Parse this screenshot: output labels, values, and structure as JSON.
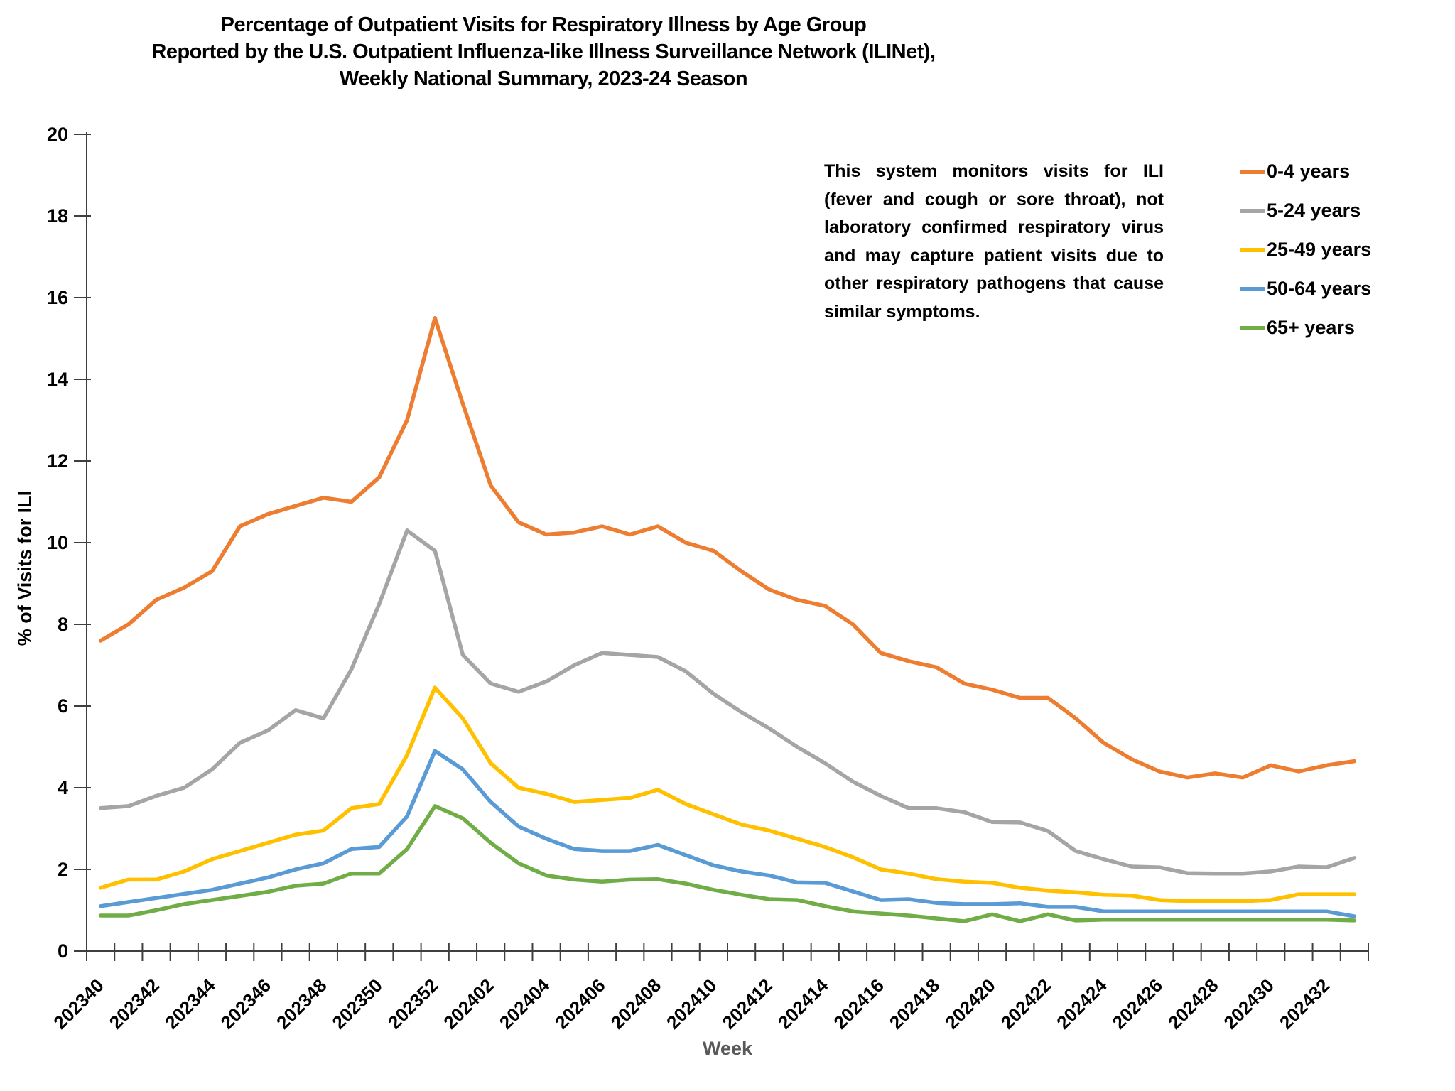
{
  "title": {
    "line1": "Percentage of Outpatient Visits for Respiratory Illness by Age Group",
    "line2": "Reported by the U.S. Outpatient Influenza-like Illness Surveillance Network (ILINet),",
    "line3": "Weekly National Summary, 2023-24 Season"
  },
  "annotation": {
    "text": "This system monitors visits for ILI (fever and cough or sore throat), not laboratory confirmed respiratory virus and may capture patient visits due to other respiratory pathogens that cause similar symptoms."
  },
  "chart_data": {
    "type": "line",
    "title": "Percentage of Outpatient Visits for Respiratory Illness by Age Group, ILINet, Weekly National Summary, 2023-24 Season",
    "xlabel": "Week",
    "ylabel": "% of Visits for ILI",
    "ylim": [
      0,
      20
    ],
    "ytick_step": 2,
    "grid": false,
    "legend_position": "right",
    "x_label_interval": 2,
    "x": [
      "202340",
      "202341",
      "202342",
      "202343",
      "202344",
      "202345",
      "202346",
      "202347",
      "202348",
      "202349",
      "202350",
      "202351",
      "202352",
      "202401",
      "202402",
      "202403",
      "202404",
      "202405",
      "202406",
      "202407",
      "202408",
      "202409",
      "202410",
      "202411",
      "202412",
      "202413",
      "202414",
      "202415",
      "202416",
      "202417",
      "202418",
      "202419",
      "202420",
      "202421",
      "202422",
      "202423",
      "202424",
      "202425",
      "202426",
      "202427",
      "202428",
      "202429",
      "202430",
      "202431",
      "202432",
      "202433"
    ],
    "series": [
      {
        "name": "0-4 years",
        "color": "#ED7D31",
        "values": [
          7.6,
          8.0,
          8.6,
          8.9,
          9.3,
          10.4,
          10.7,
          10.9,
          11.1,
          11.0,
          11.6,
          13.0,
          15.5,
          13.4,
          11.4,
          10.5,
          10.2,
          10.25,
          10.4,
          10.2,
          10.4,
          10.0,
          9.8,
          9.3,
          8.85,
          8.6,
          8.45,
          8.0,
          7.3,
          7.1,
          6.95,
          6.55,
          6.4,
          6.2,
          6.2,
          5.7,
          5.1,
          4.7,
          4.4,
          4.25,
          4.35,
          4.25,
          4.55,
          4.4,
          4.55,
          4.65
        ]
      },
      {
        "name": "5-24 years",
        "color": "#A5A5A5",
        "values": [
          3.5,
          3.55,
          3.8,
          4.0,
          4.45,
          5.1,
          5.4,
          5.9,
          5.7,
          6.9,
          8.5,
          10.3,
          9.8,
          7.25,
          6.55,
          6.35,
          6.6,
          7.0,
          7.3,
          7.25,
          7.2,
          6.85,
          6.3,
          5.85,
          5.45,
          5.0,
          4.6,
          4.15,
          3.8,
          3.5,
          3.5,
          3.4,
          3.16,
          3.15,
          2.94,
          2.45,
          2.25,
          2.07,
          2.05,
          1.91,
          1.9,
          1.9,
          1.95,
          2.07,
          2.05,
          2.28
        ]
      },
      {
        "name": "25-49 years",
        "color": "#FFC000",
        "values": [
          1.55,
          1.75,
          1.75,
          1.95,
          2.25,
          2.45,
          2.65,
          2.85,
          2.95,
          3.5,
          3.6,
          4.8,
          6.45,
          5.7,
          4.6,
          4.0,
          3.85,
          3.65,
          3.7,
          3.75,
          3.95,
          3.6,
          3.35,
          3.1,
          2.95,
          2.75,
          2.55,
          2.3,
          2.0,
          1.9,
          1.76,
          1.7,
          1.67,
          1.55,
          1.48,
          1.44,
          1.38,
          1.36,
          1.25,
          1.22,
          1.22,
          1.22,
          1.25,
          1.39,
          1.39,
          1.39
        ]
      },
      {
        "name": "50-64 years",
        "color": "#5B9BD5",
        "values": [
          1.1,
          1.2,
          1.3,
          1.4,
          1.5,
          1.65,
          1.8,
          2.0,
          2.15,
          2.5,
          2.55,
          3.3,
          4.9,
          4.45,
          3.65,
          3.05,
          2.75,
          2.5,
          2.45,
          2.45,
          2.6,
          2.35,
          2.1,
          1.95,
          1.85,
          1.68,
          1.67,
          1.46,
          1.25,
          1.27,
          1.18,
          1.15,
          1.15,
          1.17,
          1.08,
          1.08,
          0.97,
          0.97,
          0.97,
          0.97,
          0.97,
          0.97,
          0.97,
          0.97,
          0.97,
          0.85
        ]
      },
      {
        "name": "65+ years",
        "color": "#70AD47",
        "values": [
          0.87,
          0.87,
          1.0,
          1.15,
          1.25,
          1.35,
          1.45,
          1.6,
          1.65,
          1.9,
          1.9,
          2.5,
          3.55,
          3.25,
          2.65,
          2.15,
          1.85,
          1.75,
          1.7,
          1.75,
          1.76,
          1.65,
          1.5,
          1.38,
          1.27,
          1.25,
          1.1,
          0.97,
          0.92,
          0.87,
          0.8,
          0.73,
          0.9,
          0.73,
          0.9,
          0.75,
          0.77,
          0.77,
          0.77,
          0.77,
          0.77,
          0.77,
          0.77,
          0.77,
          0.77,
          0.75
        ]
      }
    ]
  }
}
